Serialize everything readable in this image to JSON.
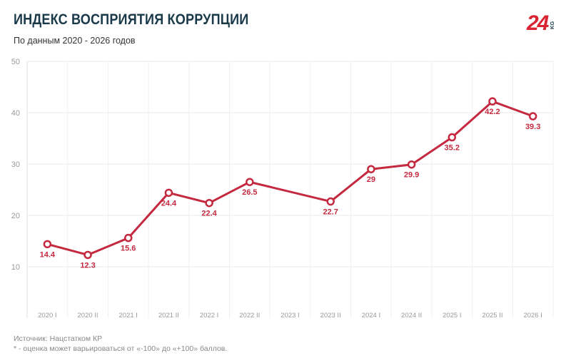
{
  "header": {
    "title": "ИНДЕКС ВОСПРИЯТИЯ КОРРУПЦИИ",
    "subtitle": "По данным 2020 - 2026 годов"
  },
  "logo": {
    "number": "24",
    "suffix": "KG"
  },
  "footer": {
    "source": "Источник: Нацстатком КР",
    "note": "* - оценка может варьироваться от «-100» до «+100» баллов."
  },
  "colors": {
    "line": "#c4293f",
    "grid": "#e8e8e8",
    "axis_text": "#999999",
    "brand_red": "#d92433"
  },
  "chart_data": {
    "type": "line",
    "title": "ИНДЕКС ВОСПРИЯТИЯ КОРРУПЦИИ",
    "subtitle": "По данным 2020 - 2026 годов",
    "categories": [
      "2020 I",
      "2020 II",
      "2021 I",
      "2021 II",
      "2022 I",
      "2022 II",
      "2023 I",
      "2023 II",
      "2024 I",
      "2024 II",
      "2025 I",
      "2025 II",
      "2026 I"
    ],
    "values": [
      14.4,
      12.3,
      15.6,
      24.4,
      22.4,
      26.5,
      null,
      22.7,
      29,
      29.9,
      35.2,
      42.2,
      39.3
    ],
    "labels": [
      "14.4",
      "12.3",
      "15.6",
      "24.4",
      "22.4",
      "26.5",
      "",
      "22.7",
      "29",
      "29.9",
      "35.2",
      "42.2",
      "39.3"
    ],
    "ylim": [
      0,
      50
    ],
    "yticks": [
      10,
      20,
      30,
      40,
      50
    ],
    "grid": true,
    "legend": "none",
    "connect_gaps": true
  }
}
